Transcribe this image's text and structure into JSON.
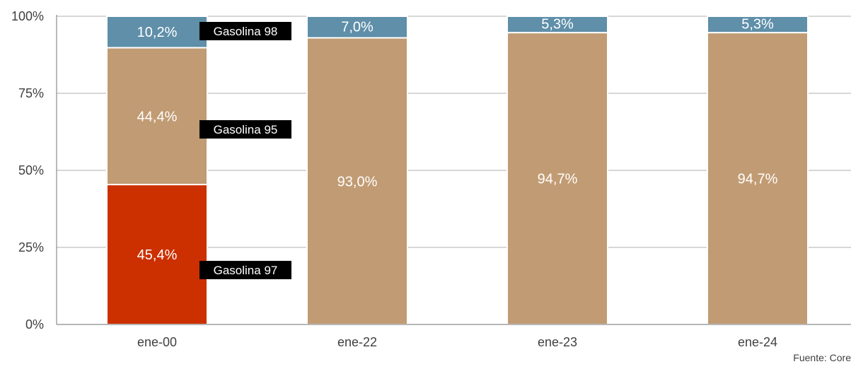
{
  "chart_data": {
    "type": "bar",
    "stacked": true,
    "categories": [
      "ene-00",
      "ene-22",
      "ene-23",
      "ene-24"
    ],
    "series": [
      {
        "name": "Gasolina 97",
        "color": "#cc3000",
        "values": [
          45.4,
          0,
          0,
          0
        ],
        "labels": [
          "45,4%",
          "",
          "",
          ""
        ]
      },
      {
        "name": "Gasolina 95",
        "color": "#c19b73",
        "values": [
          44.4,
          93.0,
          94.7,
          94.7
        ],
        "labels": [
          "44,4%",
          "93,0%",
          "94,7%",
          "94,7%"
        ]
      },
      {
        "name": "Gasolina 98",
        "color": "#5f8fa9",
        "values": [
          10.2,
          7.0,
          5.3,
          5.3
        ],
        "labels": [
          "10,2%",
          "7,0%",
          "5,3%",
          "5,3%"
        ]
      }
    ],
    "yticks": [
      "0%",
      "25%",
      "50%",
      "75%",
      "100%"
    ],
    "ylim": [
      0,
      100
    ],
    "grid": true,
    "legend": "inline tags beside first bar"
  },
  "source": "Fuente: Core"
}
